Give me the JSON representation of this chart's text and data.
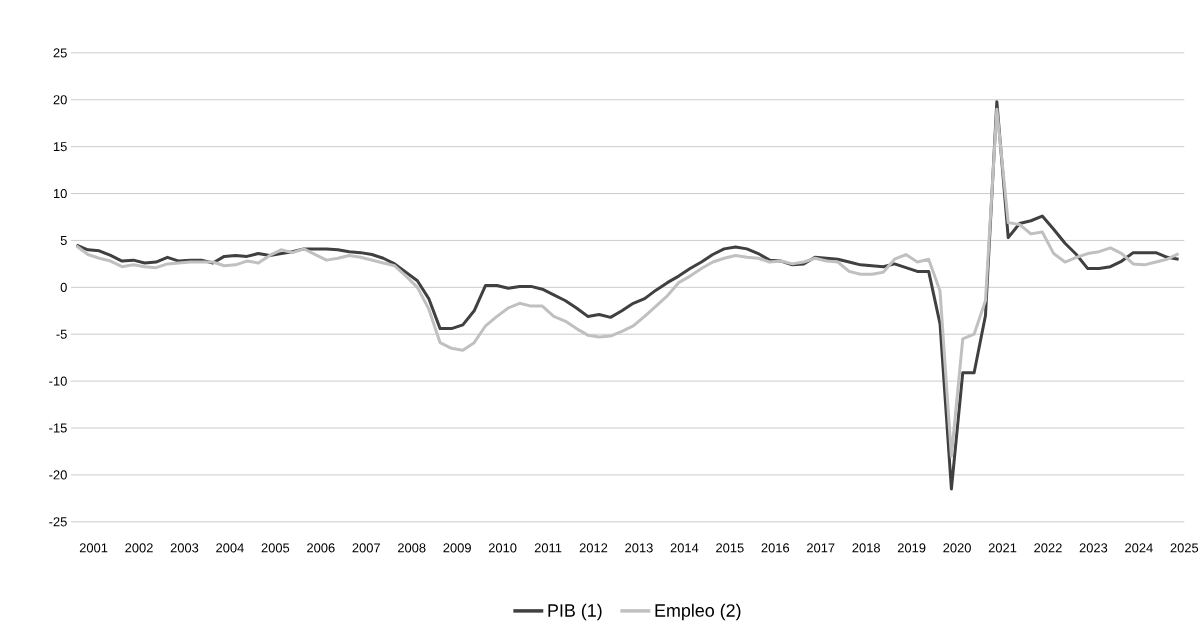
{
  "chart_data": {
    "type": "line",
    "x": [
      2001.125,
      2001.375,
      2001.625,
      2001.875,
      2002.125,
      2002.375,
      2002.625,
      2002.875,
      2003.125,
      2003.375,
      2003.625,
      2003.875,
      2004.125,
      2004.375,
      2004.625,
      2004.875,
      2005.125,
      2005.375,
      2005.625,
      2005.875,
      2006.125,
      2006.375,
      2006.625,
      2006.875,
      2007.125,
      2007.375,
      2007.625,
      2007.875,
      2008.125,
      2008.375,
      2008.625,
      2008.875,
      2009.125,
      2009.375,
      2009.625,
      2009.875,
      2010.125,
      2010.375,
      2010.625,
      2010.875,
      2011.125,
      2011.375,
      2011.625,
      2011.875,
      2012.125,
      2012.375,
      2012.625,
      2012.875,
      2013.125,
      2013.375,
      2013.625,
      2013.875,
      2014.125,
      2014.375,
      2014.625,
      2014.875,
      2015.125,
      2015.375,
      2015.625,
      2015.875,
      2016.125,
      2016.375,
      2016.625,
      2016.875,
      2017.125,
      2017.375,
      2017.625,
      2017.875,
      2018.125,
      2018.375,
      2018.625,
      2018.875,
      2019.125,
      2019.375,
      2019.625,
      2019.875,
      2020.125,
      2020.375,
      2020.625,
      2020.875,
      2021.125,
      2021.375,
      2021.625,
      2021.875,
      2022.125,
      2022.375,
      2022.625,
      2022.875,
      2023.125,
      2023.375,
      2023.625,
      2023.875,
      2024.125,
      2024.375,
      2024.625,
      2024.875,
      2025.125,
      2025.375
    ],
    "series": [
      {
        "name": "PIB (1)",
        "color": "#404040",
        "values": [
          4.5,
          4.0,
          3.9,
          3.4,
          2.8,
          2.9,
          2.6,
          2.7,
          3.2,
          2.8,
          2.9,
          2.9,
          2.6,
          3.3,
          3.4,
          3.3,
          3.6,
          3.4,
          3.6,
          3.8,
          4.1,
          4.1,
          4.1,
          4.0,
          3.8,
          3.7,
          3.5,
          3.1,
          2.5,
          1.6,
          0.7,
          -1.2,
          -4.4,
          -4.4,
          -4.0,
          -2.5,
          0.2,
          0.2,
          -0.1,
          0.1,
          0.1,
          -0.2,
          -0.8,
          -1.4,
          -2.2,
          -3.1,
          -2.9,
          -3.2,
          -2.5,
          -1.7,
          -1.2,
          -0.3,
          0.5,
          1.2,
          2.0,
          2.7,
          3.5,
          4.1,
          4.3,
          4.1,
          3.6,
          2.9,
          2.8,
          2.4,
          2.5,
          3.2,
          3.1,
          3.0,
          2.7,
          2.4,
          2.3,
          2.2,
          2.5,
          2.1,
          1.7,
          1.7,
          -3.9,
          -21.5,
          -9.1,
          -9.1,
          -3.0,
          19.8,
          5.3,
          6.8,
          7.1,
          7.6,
          6.2,
          4.7,
          3.5,
          2.0,
          2.0,
          2.2,
          2.8,
          3.7,
          3.7,
          3.7,
          3.2,
          3.0
        ]
      },
      {
        "name": "Empleo (2)",
        "color": "#c0c0c0",
        "values": [
          4.4,
          3.5,
          3.1,
          2.8,
          2.2,
          2.4,
          2.2,
          2.1,
          2.5,
          2.6,
          2.7,
          2.7,
          2.7,
          2.3,
          2.4,
          2.8,
          2.6,
          3.4,
          4.0,
          3.7,
          4.1,
          3.5,
          2.9,
          3.1,
          3.4,
          3.2,
          2.9,
          2.6,
          2.3,
          1.2,
          0.0,
          -2.3,
          -5.9,
          -6.5,
          -6.7,
          -5.9,
          -4.1,
          -3.1,
          -2.2,
          -1.7,
          -2.0,
          -2.0,
          -3.1,
          -3.6,
          -4.4,
          -5.1,
          -5.3,
          -5.2,
          -4.7,
          -4.1,
          -3.1,
          -2.0,
          -0.9,
          0.5,
          1.2,
          2.0,
          2.7,
          3.1,
          3.4,
          3.2,
          3.1,
          2.7,
          2.8,
          2.5,
          2.7,
          3.1,
          2.8,
          2.7,
          1.7,
          1.4,
          1.4,
          1.6,
          3.0,
          3.5,
          2.7,
          3.0,
          -0.4,
          -18.0,
          -5.5,
          -5.0,
          -1.4,
          19.0,
          6.9,
          6.7,
          5.7,
          5.9,
          3.6,
          2.7,
          3.2,
          3.6,
          3.8,
          4.2,
          3.6,
          2.5,
          2.4,
          2.7,
          3.0,
          3.6
        ]
      }
    ],
    "xlim": [
      2001,
      2025.5
    ],
    "xticks": [
      {
        "value": 2001.5,
        "label": "2001"
      },
      {
        "value": 2002.5,
        "label": "2002"
      },
      {
        "value": 2003.5,
        "label": "2003"
      },
      {
        "value": 2004.5,
        "label": "2004"
      },
      {
        "value": 2005.5,
        "label": "2005"
      },
      {
        "value": 2006.5,
        "label": "2006"
      },
      {
        "value": 2007.5,
        "label": "2007"
      },
      {
        "value": 2008.5,
        "label": "2008"
      },
      {
        "value": 2009.5,
        "label": "2009"
      },
      {
        "value": 2010.5,
        "label": "2010"
      },
      {
        "value": 2011.5,
        "label": "2011"
      },
      {
        "value": 2012.5,
        "label": "2012"
      },
      {
        "value": 2013.5,
        "label": "2013"
      },
      {
        "value": 2014.5,
        "label": "2014"
      },
      {
        "value": 2015.5,
        "label": "2015"
      },
      {
        "value": 2016.5,
        "label": "2016"
      },
      {
        "value": 2017.5,
        "label": "2017"
      },
      {
        "value": 2018.5,
        "label": "2018"
      },
      {
        "value": 2019.5,
        "label": "2019"
      },
      {
        "value": 2020.5,
        "label": "2020"
      },
      {
        "value": 2021.5,
        "label": "2021"
      },
      {
        "value": 2022.5,
        "label": "2022"
      },
      {
        "value": 2023.5,
        "label": "2023"
      },
      {
        "value": 2024.5,
        "label": "2024"
      },
      {
        "value": 2025.5,
        "label": "2025"
      }
    ],
    "ylim": [
      -25,
      25
    ],
    "yticks": [
      -25,
      -20,
      -15,
      -10,
      -5,
      0,
      5,
      10,
      15,
      20,
      25
    ],
    "grid": "y",
    "legend": "bottom",
    "line_style": "solid"
  }
}
